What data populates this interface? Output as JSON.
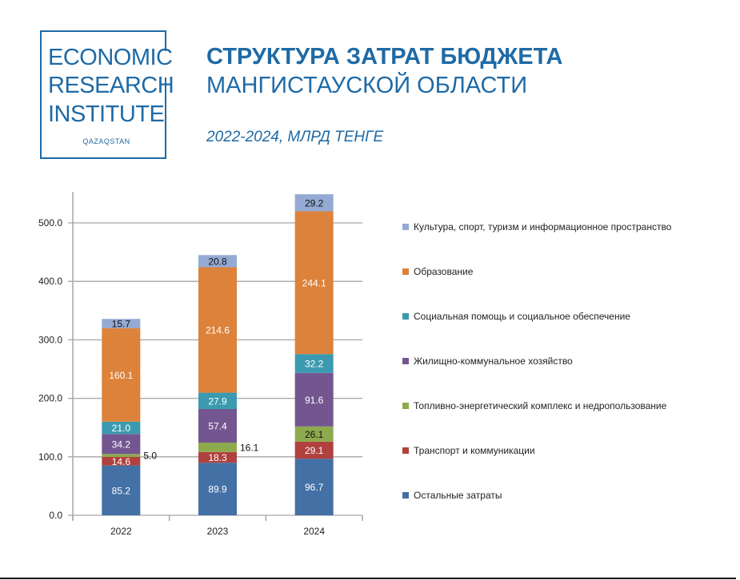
{
  "logo": {
    "lines": [
      "ECONOMIC",
      "RESEARCH",
      "INSTITUTE"
    ],
    "sub": "QAZAQSTAN"
  },
  "header": {
    "title_line1": "СТРУКТУРА ЗАТРАТ БЮДЖЕТА",
    "title_line2": "МАНГИСТАУСКОЙ ОБЛАСТИ",
    "subtitle": "2022-2024, МЛРД ТЕНГЕ"
  },
  "chart_data": {
    "type": "bar",
    "stacked": true,
    "title": "СТРУКТУРА ЗАТРАТ БЮДЖЕТА МАНГИСТАУСКОЙ ОБЛАСТИ",
    "subtitle": "2022-2024, МЛРД ТЕНГЕ",
    "categories": [
      "2022",
      "2023",
      "2024"
    ],
    "ylim": [
      0,
      550
    ],
    "yticks": [
      0,
      100,
      200,
      300,
      400,
      500
    ],
    "ytick_labels": [
      "0.0",
      "100.0",
      "200.0",
      "300.0",
      "400.0",
      "500.0"
    ],
    "grid": true,
    "legend_position": "right",
    "series": [
      {
        "name": "Остальные затраты",
        "color": "#4370a5",
        "label_color": "#ffffff",
        "values": [
          85.2,
          89.9,
          96.7
        ],
        "labels": [
          "85.2",
          "89.9",
          "96.7"
        ]
      },
      {
        "name": "Транспорт и коммуникации",
        "color": "#b0413e",
        "label_color": "#ffffff",
        "values": [
          14.6,
          18.3,
          29.1
        ],
        "labels": [
          "14.6",
          "18.3",
          "29.1"
        ]
      },
      {
        "name": "Топливно-энергетический комплекс и недропользование",
        "color": "#8eaa4e",
        "label_color": "#111111",
        "values": [
          5.0,
          16.1,
          26.1
        ],
        "labels": [
          "5.0",
          "16.1",
          "26.1"
        ]
      },
      {
        "name": "Жилищно-коммунальное хозяйство",
        "color": "#735690",
        "label_color": "#ffffff",
        "values": [
          34.2,
          57.4,
          91.6
        ],
        "labels": [
          "34.2",
          "57.4",
          "91.6"
        ]
      },
      {
        "name": "Социальная помощь и социальное обеспечение",
        "color": "#3b9ab0",
        "label_color": "#ffffff",
        "values": [
          21.0,
          27.9,
          32.2
        ],
        "labels": [
          "21.0",
          "27.9",
          "32.2"
        ]
      },
      {
        "name": "Образование",
        "color": "#dc823b",
        "label_color": "#ffffff",
        "values": [
          160.1,
          214.6,
          244.1
        ],
        "labels": [
          "160.1",
          "214.6",
          "244.1"
        ]
      },
      {
        "name": "Культура, спорт, туризм и информационное пространство",
        "color": "#94aad4",
        "label_color": "#111111",
        "values": [
          15.7,
          20.8,
          29.2
        ],
        "labels": [
          "15.7",
          "20.8",
          "29.2"
        ]
      }
    ]
  }
}
